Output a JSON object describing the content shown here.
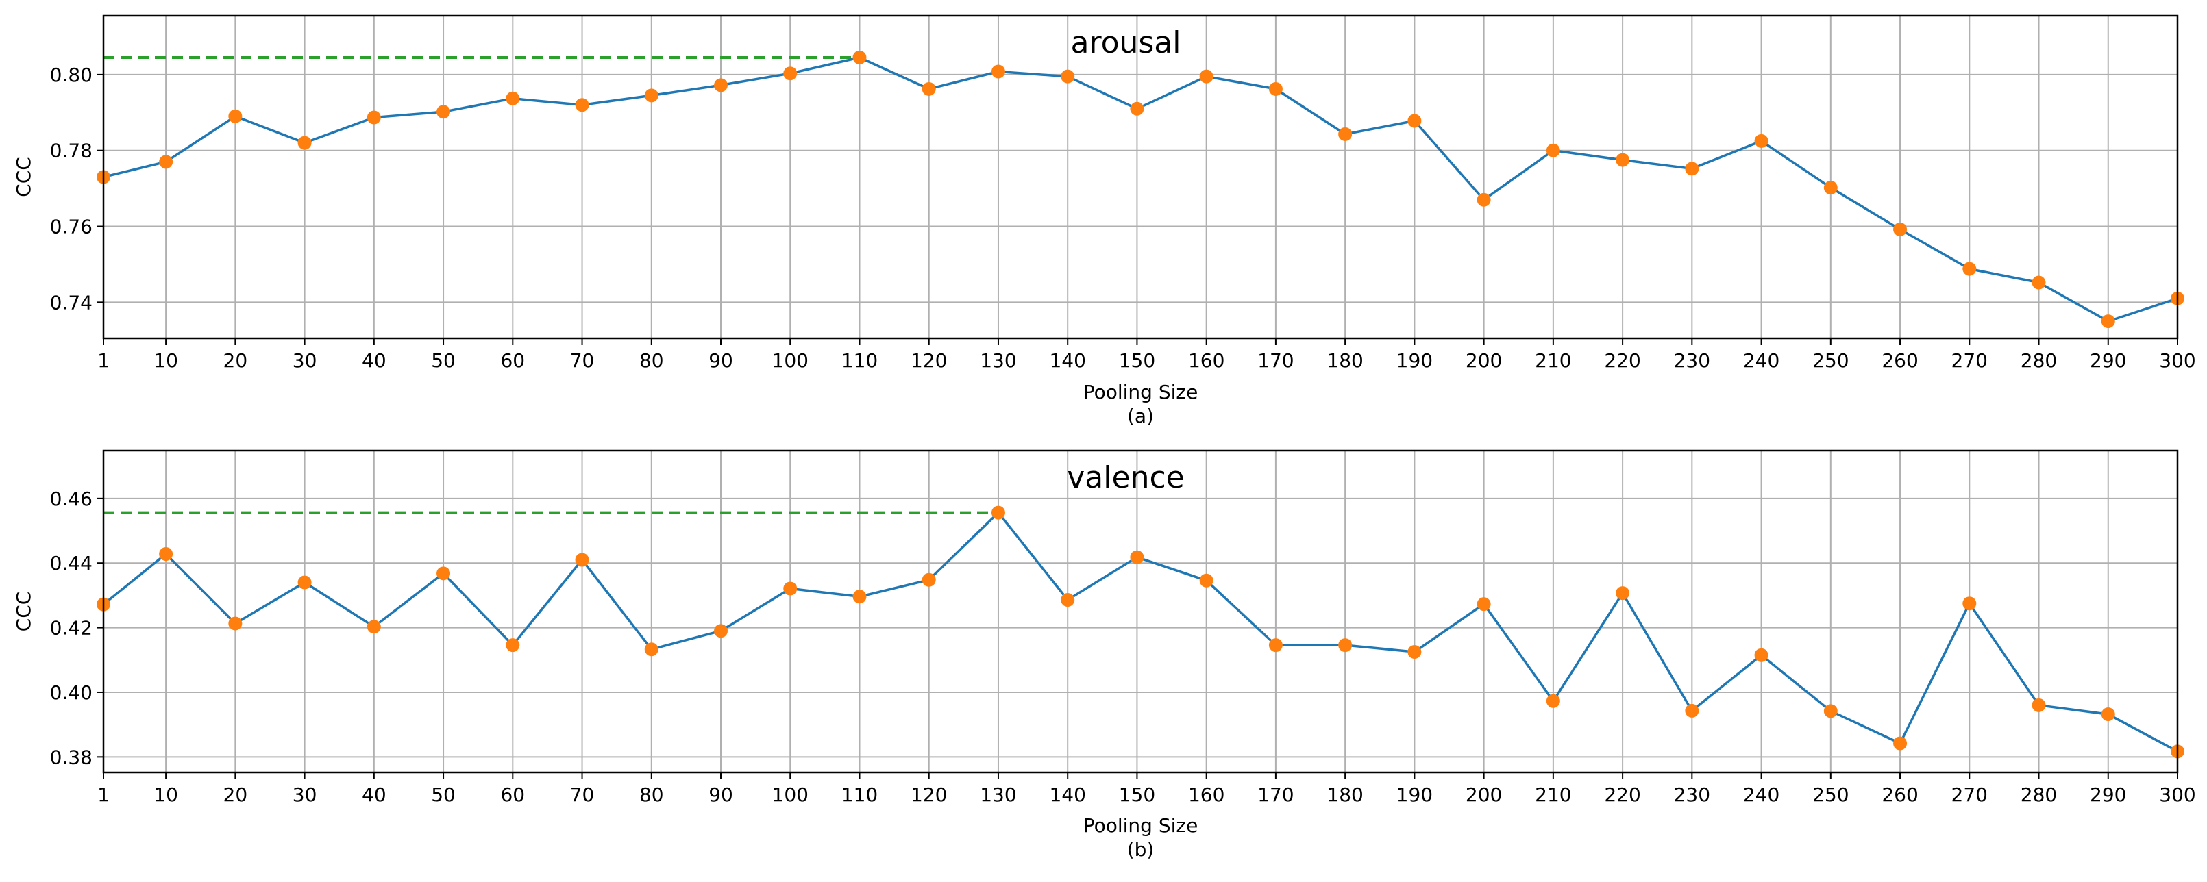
{
  "figure": {
    "charts": [
      {
        "caption": "(a)"
      },
      {
        "caption": "(b)"
      }
    ]
  },
  "colors": {
    "line": "#1f77b4",
    "marker": "#ff7f0e",
    "best_line": "#2ca02c",
    "grid": "#b0b0b0",
    "axis": "#000000"
  },
  "chart_data": [
    {
      "type": "line",
      "title": "arousal",
      "xlabel": "Pooling Size",
      "ylabel": "CCC",
      "caption": "(a)",
      "grid": true,
      "x": [
        1,
        10,
        20,
        30,
        40,
        50,
        60,
        70,
        80,
        90,
        100,
        110,
        120,
        130,
        140,
        150,
        160,
        170,
        180,
        190,
        200,
        210,
        220,
        230,
        240,
        250,
        260,
        270,
        280,
        290,
        300
      ],
      "x_tick_labels": [
        "1",
        "10",
        "20",
        "30",
        "40",
        "50",
        "60",
        "70",
        "80",
        "90",
        "100",
        "110",
        "120",
        "130",
        "140",
        "150",
        "160",
        "170",
        "180",
        "190",
        "200",
        "210",
        "220",
        "230",
        "240",
        "250",
        "260",
        "270",
        "280",
        "290",
        "300"
      ],
      "y_ticks": [
        0.74,
        0.76,
        0.78,
        0.8
      ],
      "y_tick_labels": [
        "0.74",
        "0.76",
        "0.78",
        "0.80"
      ],
      "ylim": [
        0.7305,
        0.8155
      ],
      "series": [
        {
          "name": "arousal",
          "values": [
            0.773,
            0.777,
            0.789,
            0.782,
            0.7887,
            0.7902,
            0.7937,
            0.792,
            0.7945,
            0.7972,
            0.8003,
            0.8045,
            0.7962,
            0.8008,
            0.7995,
            0.791,
            0.7995,
            0.7962,
            0.7843,
            0.7878,
            0.767,
            0.78,
            0.7775,
            0.7752,
            0.7825,
            0.7702,
            0.7592,
            0.7488,
            0.7452,
            0.735,
            0.741
          ]
        }
      ],
      "best": {
        "x": 110,
        "value": 0.8045
      }
    },
    {
      "type": "line",
      "title": "valence",
      "xlabel": "Pooling Size",
      "ylabel": "CCC",
      "caption": "(b)",
      "grid": true,
      "x": [
        1,
        10,
        20,
        30,
        40,
        50,
        60,
        70,
        80,
        90,
        100,
        110,
        120,
        130,
        140,
        150,
        160,
        170,
        180,
        190,
        200,
        210,
        220,
        230,
        240,
        250,
        260,
        270,
        280,
        290,
        300
      ],
      "x_tick_labels": [
        "1",
        "10",
        "20",
        "30",
        "40",
        "50",
        "60",
        "70",
        "80",
        "90",
        "100",
        "110",
        "120",
        "130",
        "140",
        "150",
        "160",
        "170",
        "180",
        "190",
        "200",
        "210",
        "220",
        "230",
        "240",
        "250",
        "260",
        "270",
        "280",
        "290",
        "300"
      ],
      "y_ticks": [
        0.38,
        0.4,
        0.42,
        0.44,
        0.46
      ],
      "y_tick_labels": [
        "0.38",
        "0.40",
        "0.42",
        "0.44",
        "0.46"
      ],
      "ylim": [
        0.3752,
        0.4748
      ],
      "series": [
        {
          "name": "valence",
          "values": [
            0.4272,
            0.4428,
            0.4213,
            0.434,
            0.4203,
            0.4368,
            0.4146,
            0.441,
            0.4133,
            0.419,
            0.4321,
            0.4296,
            0.4348,
            0.4556,
            0.4286,
            0.4418,
            0.4346,
            0.4146,
            0.4146,
            0.4125,
            0.4273,
            0.3973,
            0.4307,
            0.3943,
            0.4115,
            0.3942,
            0.3842,
            0.4275,
            0.396,
            0.3932,
            0.3817
          ]
        }
      ],
      "best": {
        "x": 130,
        "value": 0.4556
      }
    }
  ]
}
